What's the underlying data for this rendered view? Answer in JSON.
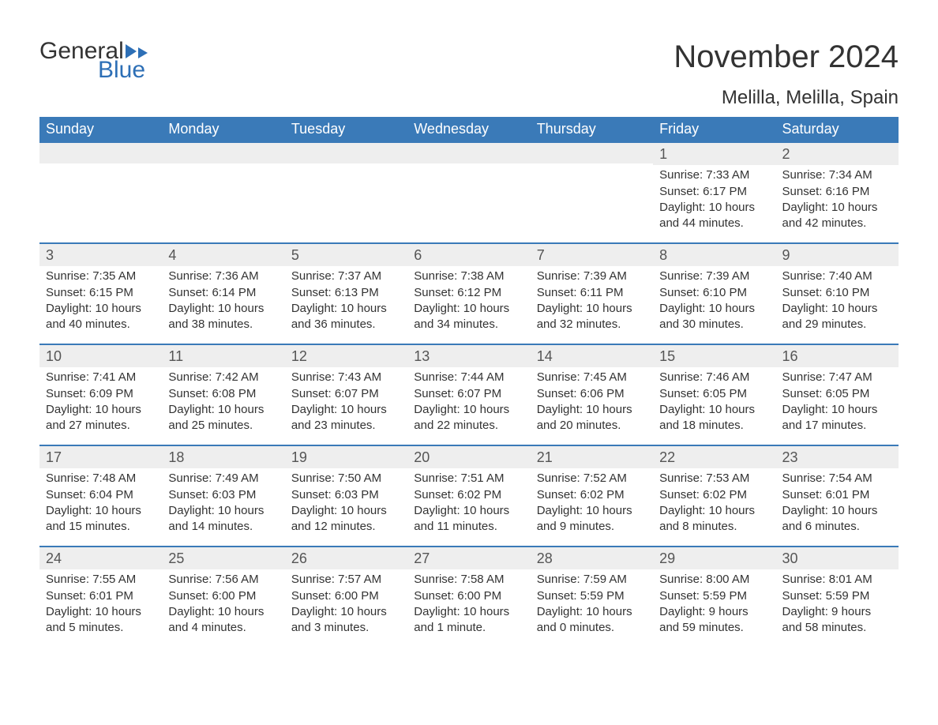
{
  "logo": {
    "general": "General",
    "blue": "Blue"
  },
  "title": "November 2024",
  "subtitle": "Melilla, Melilla, Spain",
  "colors": {
    "header_bg": "#3a7ab8",
    "header_text": "#ffffff",
    "row_divider": "#3a7ab8",
    "daynum_bg": "#eeeeee",
    "body_text": "#333333",
    "logo_blue": "#2d6fb6",
    "page_bg": "#ffffff"
  },
  "weekdays": [
    "Sunday",
    "Monday",
    "Tuesday",
    "Wednesday",
    "Thursday",
    "Friday",
    "Saturday"
  ],
  "weeks": [
    [
      null,
      null,
      null,
      null,
      null,
      {
        "n": "1",
        "sunrise": "Sunrise: 7:33 AM",
        "sunset": "Sunset: 6:17 PM",
        "daylight": "Daylight: 10 hours and 44 minutes."
      },
      {
        "n": "2",
        "sunrise": "Sunrise: 7:34 AM",
        "sunset": "Sunset: 6:16 PM",
        "daylight": "Daylight: 10 hours and 42 minutes."
      }
    ],
    [
      {
        "n": "3",
        "sunrise": "Sunrise: 7:35 AM",
        "sunset": "Sunset: 6:15 PM",
        "daylight": "Daylight: 10 hours and 40 minutes."
      },
      {
        "n": "4",
        "sunrise": "Sunrise: 7:36 AM",
        "sunset": "Sunset: 6:14 PM",
        "daylight": "Daylight: 10 hours and 38 minutes."
      },
      {
        "n": "5",
        "sunrise": "Sunrise: 7:37 AM",
        "sunset": "Sunset: 6:13 PM",
        "daylight": "Daylight: 10 hours and 36 minutes."
      },
      {
        "n": "6",
        "sunrise": "Sunrise: 7:38 AM",
        "sunset": "Sunset: 6:12 PM",
        "daylight": "Daylight: 10 hours and 34 minutes."
      },
      {
        "n": "7",
        "sunrise": "Sunrise: 7:39 AM",
        "sunset": "Sunset: 6:11 PM",
        "daylight": "Daylight: 10 hours and 32 minutes."
      },
      {
        "n": "8",
        "sunrise": "Sunrise: 7:39 AM",
        "sunset": "Sunset: 6:10 PM",
        "daylight": "Daylight: 10 hours and 30 minutes."
      },
      {
        "n": "9",
        "sunrise": "Sunrise: 7:40 AM",
        "sunset": "Sunset: 6:10 PM",
        "daylight": "Daylight: 10 hours and 29 minutes."
      }
    ],
    [
      {
        "n": "10",
        "sunrise": "Sunrise: 7:41 AM",
        "sunset": "Sunset: 6:09 PM",
        "daylight": "Daylight: 10 hours and 27 minutes."
      },
      {
        "n": "11",
        "sunrise": "Sunrise: 7:42 AM",
        "sunset": "Sunset: 6:08 PM",
        "daylight": "Daylight: 10 hours and 25 minutes."
      },
      {
        "n": "12",
        "sunrise": "Sunrise: 7:43 AM",
        "sunset": "Sunset: 6:07 PM",
        "daylight": "Daylight: 10 hours and 23 minutes."
      },
      {
        "n": "13",
        "sunrise": "Sunrise: 7:44 AM",
        "sunset": "Sunset: 6:07 PM",
        "daylight": "Daylight: 10 hours and 22 minutes."
      },
      {
        "n": "14",
        "sunrise": "Sunrise: 7:45 AM",
        "sunset": "Sunset: 6:06 PM",
        "daylight": "Daylight: 10 hours and 20 minutes."
      },
      {
        "n": "15",
        "sunrise": "Sunrise: 7:46 AM",
        "sunset": "Sunset: 6:05 PM",
        "daylight": "Daylight: 10 hours and 18 minutes."
      },
      {
        "n": "16",
        "sunrise": "Sunrise: 7:47 AM",
        "sunset": "Sunset: 6:05 PM",
        "daylight": "Daylight: 10 hours and 17 minutes."
      }
    ],
    [
      {
        "n": "17",
        "sunrise": "Sunrise: 7:48 AM",
        "sunset": "Sunset: 6:04 PM",
        "daylight": "Daylight: 10 hours and 15 minutes."
      },
      {
        "n": "18",
        "sunrise": "Sunrise: 7:49 AM",
        "sunset": "Sunset: 6:03 PM",
        "daylight": "Daylight: 10 hours and 14 minutes."
      },
      {
        "n": "19",
        "sunrise": "Sunrise: 7:50 AM",
        "sunset": "Sunset: 6:03 PM",
        "daylight": "Daylight: 10 hours and 12 minutes."
      },
      {
        "n": "20",
        "sunrise": "Sunrise: 7:51 AM",
        "sunset": "Sunset: 6:02 PM",
        "daylight": "Daylight: 10 hours and 11 minutes."
      },
      {
        "n": "21",
        "sunrise": "Sunrise: 7:52 AM",
        "sunset": "Sunset: 6:02 PM",
        "daylight": "Daylight: 10 hours and 9 minutes."
      },
      {
        "n": "22",
        "sunrise": "Sunrise: 7:53 AM",
        "sunset": "Sunset: 6:02 PM",
        "daylight": "Daylight: 10 hours and 8 minutes."
      },
      {
        "n": "23",
        "sunrise": "Sunrise: 7:54 AM",
        "sunset": "Sunset: 6:01 PM",
        "daylight": "Daylight: 10 hours and 6 minutes."
      }
    ],
    [
      {
        "n": "24",
        "sunrise": "Sunrise: 7:55 AM",
        "sunset": "Sunset: 6:01 PM",
        "daylight": "Daylight: 10 hours and 5 minutes."
      },
      {
        "n": "25",
        "sunrise": "Sunrise: 7:56 AM",
        "sunset": "Sunset: 6:00 PM",
        "daylight": "Daylight: 10 hours and 4 minutes."
      },
      {
        "n": "26",
        "sunrise": "Sunrise: 7:57 AM",
        "sunset": "Sunset: 6:00 PM",
        "daylight": "Daylight: 10 hours and 3 minutes."
      },
      {
        "n": "27",
        "sunrise": "Sunrise: 7:58 AM",
        "sunset": "Sunset: 6:00 PM",
        "daylight": "Daylight: 10 hours and 1 minute."
      },
      {
        "n": "28",
        "sunrise": "Sunrise: 7:59 AM",
        "sunset": "Sunset: 5:59 PM",
        "daylight": "Daylight: 10 hours and 0 minutes."
      },
      {
        "n": "29",
        "sunrise": "Sunrise: 8:00 AM",
        "sunset": "Sunset: 5:59 PM",
        "daylight": "Daylight: 9 hours and 59 minutes."
      },
      {
        "n": "30",
        "sunrise": "Sunrise: 8:01 AM",
        "sunset": "Sunset: 5:59 PM",
        "daylight": "Daylight: 9 hours and 58 minutes."
      }
    ]
  ]
}
